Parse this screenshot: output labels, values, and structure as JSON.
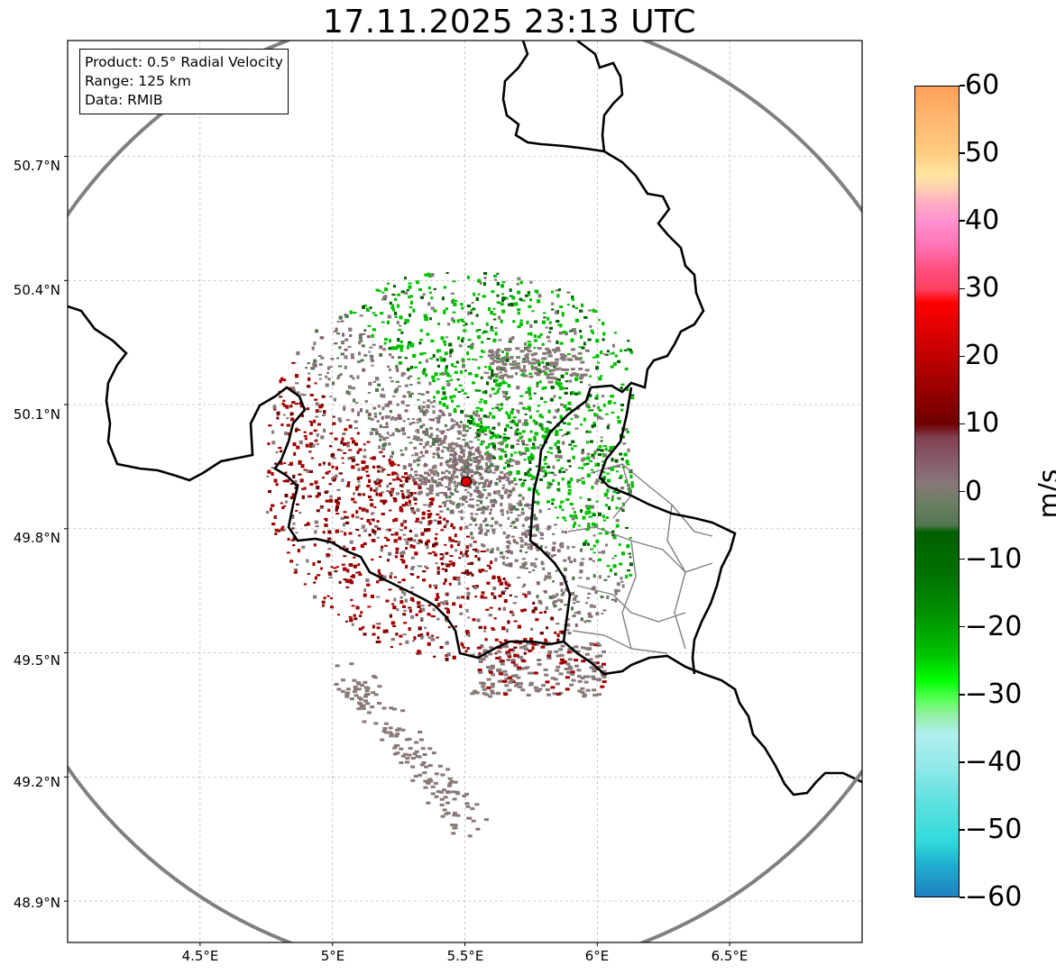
{
  "title": "17.11.2025 23:13 UTC",
  "info_box": {
    "product": "Product: 0.5° Radial Velocity",
    "range": "Range: 125 km",
    "data": "Data: RMIB"
  },
  "radar_site": {
    "lon": 5.505,
    "lat": 49.914
  },
  "map_extent": {
    "lon_min": 4.0,
    "lon_max": 7.0,
    "lat_min": 48.8,
    "lat_max": 50.98
  },
  "latitude_ticks": [
    "50.7°N",
    "50.4°N",
    "50.1°N",
    "49.8°N",
    "49.5°N",
    "49.2°N",
    "48.9°N"
  ],
  "latitude_values": [
    50.7,
    50.4,
    50.1,
    49.8,
    49.5,
    49.2,
    48.9
  ],
  "longitude_ticks": [
    "4.5°E",
    "5°E",
    "5.5°E",
    "6°E",
    "6.5°E"
  ],
  "longitude_values": [
    4.5,
    5.0,
    5.5,
    6.0,
    6.5
  ],
  "colorbar": {
    "label": "m/s",
    "ticks": [
      "60",
      "50",
      "40",
      "30",
      "20",
      "10",
      "0",
      "−10",
      "−20",
      "−30",
      "−40",
      "−50",
      "−60"
    ],
    "tick_values": [
      60,
      50,
      40,
      30,
      20,
      10,
      0,
      -10,
      -20,
      -30,
      -40,
      -50,
      -60
    ],
    "min": -60,
    "max": 60,
    "color_stops": [
      {
        "v": 60,
        "c": "#ffa05a"
      },
      {
        "v": 55,
        "c": "#ffb870"
      },
      {
        "v": 50,
        "c": "#ffcc80"
      },
      {
        "v": 47,
        "c": "#ffe4a0"
      },
      {
        "v": 45,
        "c": "#ffd0b0"
      },
      {
        "v": 43,
        "c": "#ffb0c0"
      },
      {
        "v": 40,
        "c": "#ff90d0"
      },
      {
        "v": 36,
        "c": "#ff70b0"
      },
      {
        "v": 33,
        "c": "#ff5080"
      },
      {
        "v": 30,
        "c": "#ff4060"
      },
      {
        "v": 28,
        "c": "#ff0000"
      },
      {
        "v": 22,
        "c": "#d00000"
      },
      {
        "v": 18,
        "c": "#b00000"
      },
      {
        "v": 14,
        "c": "#900000"
      },
      {
        "v": 10,
        "c": "#700000"
      },
      {
        "v": 8,
        "c": "#804050"
      },
      {
        "v": 4,
        "c": "#886070"
      },
      {
        "v": 1,
        "c": "#887878"
      },
      {
        "v": -2,
        "c": "#6a8060"
      },
      {
        "v": -5,
        "c": "#507850"
      },
      {
        "v": -6,
        "c": "#006000"
      },
      {
        "v": -12,
        "c": "#007000"
      },
      {
        "v": -18,
        "c": "#009000"
      },
      {
        "v": -24,
        "c": "#00c000"
      },
      {
        "v": -28,
        "c": "#00ff00"
      },
      {
        "v": -31,
        "c": "#60ff60"
      },
      {
        "v": -33,
        "c": "#90f0a0"
      },
      {
        "v": -36,
        "c": "#b0eef0"
      },
      {
        "v": -41,
        "c": "#90e8e8"
      },
      {
        "v": -46,
        "c": "#60e0e0"
      },
      {
        "v": -52,
        "c": "#30dada"
      },
      {
        "v": -55,
        "c": "#20b0d0"
      },
      {
        "v": -60,
        "c": "#2080c0"
      }
    ]
  },
  "colors": {
    "inbound_strong": "#00c000",
    "inbound_dark": "#006000",
    "outbound_red": "#a00000",
    "outbound_dark": "#700000",
    "near_zero": "#887878",
    "range_ring": "#808080",
    "border": "#000000",
    "region_border": "#808080",
    "site_marker": "#e00000"
  }
}
